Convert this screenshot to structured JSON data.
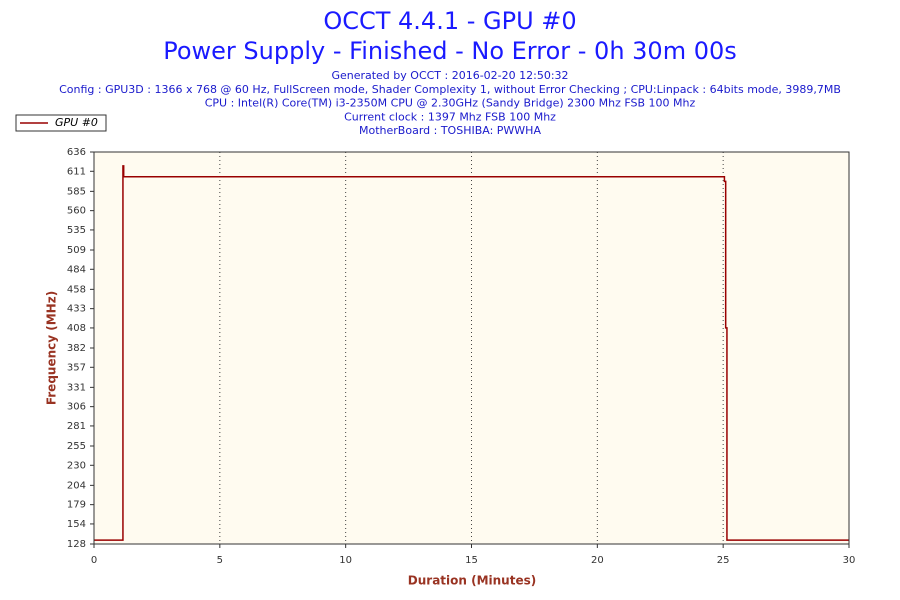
{
  "chart_data": {
    "type": "line",
    "title": "OCCT 4.4.1 - GPU #0",
    "subtitle": "Power Supply - Finished - No Error - 0h 30m 00s",
    "info": [
      "Generated by OCCT : 2016-02-20 12:50:32",
      "Config : GPU3D : 1366 x 768 @ 60 Hz, FullScreen mode, Shader Complexity 1, without Error Checking ; CPU:Linpack : 64bits mode, 3989,7MB",
      "CPU : Intel(R) Core(TM) i3-2350M CPU @ 2.30GHz (Sandy Bridge) 2300 Mhz FSB 100 Mhz",
      "Current clock : 1397 Mhz FSB 100 Mhz",
      "MotherBoard : TOSHIBA: PWWHA"
    ],
    "x_label": "Duration (Minutes)",
    "y_label": "Frequency (MHz)",
    "x": [
      0,
      1.15,
      1.15,
      1.18,
      1.18,
      25.05,
      25.05,
      25.1,
      25.1,
      25.15,
      25.15,
      30
    ],
    "series": [
      {
        "name": "GPU #0",
        "color": "#990000",
        "values": [
          133,
          133,
          618,
          618,
          604,
          604,
          598,
          598,
          408,
          408,
          133,
          133
        ]
      }
    ],
    "xlim": [
      0,
      30
    ],
    "ylim": [
      128,
      636
    ],
    "xticks": [
      0,
      5,
      10,
      15,
      20,
      25,
      30
    ],
    "yticks": [
      128,
      154,
      179,
      204,
      230,
      255,
      281,
      306,
      331,
      357,
      382,
      408,
      433,
      458,
      484,
      509,
      535,
      560,
      585,
      611,
      636
    ],
    "grid": "x",
    "background": "#fffbf0",
    "legend": "top-left"
  }
}
